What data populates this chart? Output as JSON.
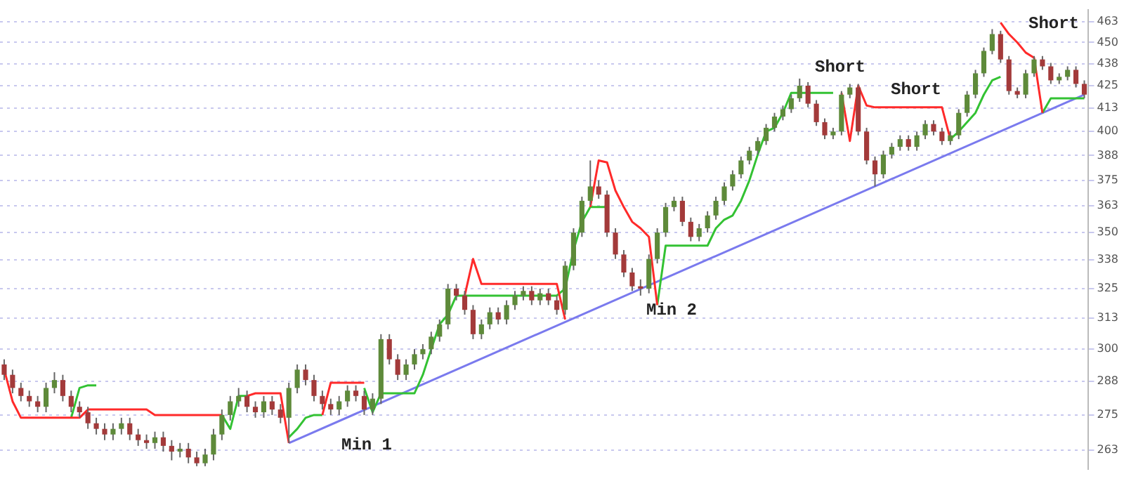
{
  "chart_data": {
    "type": "candlestick",
    "log": "y",
    "legend": false,
    "grid": "y",
    "tick_labels": "y",
    "categories": [
      null,
      null,
      null,
      null,
      null,
      null,
      null,
      null,
      null,
      null,
      null,
      null,
      null,
      null,
      null,
      null,
      null,
      null,
      null,
      null,
      null,
      null,
      null,
      null,
      null,
      null,
      null,
      null,
      null,
      null,
      null,
      null,
      null,
      null,
      null,
      null,
      null,
      null,
      null,
      null,
      null,
      null,
      null,
      null,
      null,
      null,
      null,
      null,
      null,
      null,
      null,
      null,
      null,
      null,
      null,
      null,
      null,
      null,
      null,
      null,
      null,
      null,
      null,
      null,
      null,
      null,
      null,
      null,
      null,
      null,
      null,
      null,
      null,
      null,
      null,
      null,
      null,
      null,
      null,
      null,
      null,
      null,
      null,
      null,
      null,
      null,
      null,
      null,
      null,
      null,
      null,
      null,
      null,
      null,
      null,
      null,
      null,
      null,
      null,
      null,
      null,
      null,
      null,
      null,
      null,
      null,
      null,
      null,
      null,
      null,
      null,
      null,
      null,
      null,
      null,
      null,
      null,
      null,
      null,
      null,
      null,
      null,
      null,
      null,
      null,
      null,
      null,
      null,
      null,
      null
    ],
    "ohlc": [
      [
        294,
        296,
        288,
        290
      ],
      [
        290,
        292,
        283,
        285
      ],
      [
        285,
        287,
        280,
        282
      ],
      [
        282,
        284,
        278,
        280
      ],
      [
        280,
        282,
        276,
        278
      ],
      [
        278,
        287,
        276,
        285
      ],
      [
        285,
        291,
        283,
        288
      ],
      [
        288,
        290,
        280,
        282
      ],
      [
        282,
        284,
        276,
        278
      ],
      [
        278,
        280,
        274,
        276
      ],
      [
        276,
        278,
        270,
        272
      ],
      [
        272,
        274,
        268,
        270
      ],
      [
        270,
        272,
        266,
        268
      ],
      [
        268,
        272,
        266,
        270
      ],
      [
        270,
        274,
        268,
        272
      ],
      [
        272,
        274,
        266,
        268
      ],
      [
        268,
        270,
        264,
        266
      ],
      [
        266,
        268,
        263,
        265
      ],
      [
        265,
        269,
        263,
        267
      ],
      [
        267,
        269,
        262,
        264
      ],
      [
        264,
        266,
        259,
        262
      ],
      [
        262,
        265,
        260,
        263
      ],
      [
        263,
        265,
        258,
        260
      ],
      [
        260,
        262,
        257,
        258
      ],
      [
        258,
        263,
        257,
        261
      ],
      [
        261,
        270,
        259,
        268
      ],
      [
        268,
        277,
        266,
        275
      ],
      [
        275,
        282,
        273,
        280
      ],
      [
        280,
        285,
        278,
        282
      ],
      [
        282,
        284,
        276,
        278
      ],
      [
        278,
        280,
        274,
        276
      ],
      [
        276,
        282,
        274,
        280
      ],
      [
        280,
        282,
        275,
        277
      ],
      [
        277,
        279,
        272,
        274
      ],
      [
        274,
        287,
        265,
        285
      ],
      [
        285,
        294,
        283,
        292
      ],
      [
        292,
        294,
        286,
        288
      ],
      [
        288,
        290,
        280,
        282
      ],
      [
        282,
        284,
        277,
        279
      ],
      [
        279,
        281,
        275,
        277
      ],
      [
        277,
        282,
        275,
        280
      ],
      [
        280,
        286,
        278,
        284
      ],
      [
        284,
        286,
        280,
        282
      ],
      [
        282,
        284,
        275,
        277
      ],
      [
        277,
        283,
        275,
        281
      ],
      [
        281,
        306,
        279,
        304
      ],
      [
        304,
        306,
        294,
        296
      ],
      [
        296,
        298,
        288,
        290
      ],
      [
        290,
        296,
        288,
        294
      ],
      [
        294,
        300,
        292,
        298
      ],
      [
        298,
        302,
        296,
        300
      ],
      [
        300,
        307,
        298,
        305
      ],
      [
        305,
        312,
        303,
        310
      ],
      [
        310,
        327,
        308,
        325
      ],
      [
        325,
        327,
        320,
        322
      ],
      [
        322,
        324,
        314,
        316
      ],
      [
        316,
        318,
        304,
        306
      ],
      [
        306,
        312,
        304,
        310
      ],
      [
        310,
        317,
        308,
        315
      ],
      [
        315,
        317,
        310,
        312
      ],
      [
        312,
        320,
        310,
        318
      ],
      [
        318,
        324,
        316,
        322
      ],
      [
        322,
        326,
        320,
        324
      ],
      [
        324,
        326,
        318,
        320
      ],
      [
        320,
        325,
        318,
        323
      ],
      [
        323,
        325,
        318,
        320
      ],
      [
        320,
        322,
        314,
        316
      ],
      [
        316,
        337,
        314,
        335
      ],
      [
        335,
        352,
        333,
        350
      ],
      [
        350,
        367,
        348,
        365
      ],
      [
        365,
        385,
        363,
        372
      ],
      [
        372,
        375,
        366,
        368
      ],
      [
        368,
        370,
        348,
        350
      ],
      [
        350,
        352,
        338,
        340
      ],
      [
        340,
        342,
        330,
        332
      ],
      [
        332,
        334,
        324,
        326
      ],
      [
        326,
        329,
        322,
        325
      ],
      [
        325,
        340,
        323,
        338
      ],
      [
        338,
        352,
        336,
        350
      ],
      [
        350,
        364,
        348,
        362
      ],
      [
        362,
        367,
        360,
        365
      ],
      [
        365,
        367,
        353,
        355
      ],
      [
        355,
        357,
        346,
        348
      ],
      [
        348,
        354,
        346,
        352
      ],
      [
        352,
        360,
        350,
        358
      ],
      [
        358,
        367,
        356,
        365
      ],
      [
        365,
        374,
        363,
        372
      ],
      [
        372,
        380,
        370,
        378
      ],
      [
        378,
        387,
        376,
        385
      ],
      [
        385,
        392,
        383,
        390
      ],
      [
        390,
        397,
        388,
        395
      ],
      [
        395,
        404,
        393,
        402
      ],
      [
        402,
        410,
        400,
        408
      ],
      [
        408,
        414,
        406,
        412
      ],
      [
        412,
        420,
        410,
        418
      ],
      [
        418,
        429,
        416,
        425
      ],
      [
        425,
        427,
        413,
        415
      ],
      [
        415,
        417,
        403,
        405
      ],
      [
        405,
        407,
        396,
        398
      ],
      [
        398,
        402,
        396,
        400
      ],
      [
        400,
        422,
        398,
        420
      ],
      [
        420,
        426,
        418,
        424
      ],
      [
        424,
        426,
        398,
        400
      ],
      [
        400,
        402,
        383,
        385
      ],
      [
        385,
        387,
        372,
        378
      ],
      [
        378,
        390,
        376,
        388
      ],
      [
        388,
        394,
        386,
        392
      ],
      [
        392,
        398,
        390,
        396
      ],
      [
        396,
        398,
        390,
        392
      ],
      [
        392,
        400,
        390,
        398
      ],
      [
        398,
        406,
        396,
        404
      ],
      [
        404,
        406,
        398,
        400
      ],
      [
        400,
        402,
        393,
        395
      ],
      [
        395,
        400,
        393,
        398
      ],
      [
        398,
        412,
        396,
        410
      ],
      [
        410,
        422,
        408,
        420
      ],
      [
        420,
        434,
        418,
        432
      ],
      [
        432,
        447,
        430,
        445
      ],
      [
        445,
        458,
        443,
        455
      ],
      [
        455,
        457,
        438,
        440
      ],
      [
        440,
        442,
        420,
        422
      ],
      [
        422,
        424,
        418,
        420
      ],
      [
        420,
        434,
        418,
        432
      ],
      [
        432,
        442,
        430,
        440
      ],
      [
        440,
        442,
        434,
        436
      ],
      [
        436,
        438,
        426,
        428
      ],
      [
        428,
        432,
        426,
        430
      ],
      [
        430,
        436,
        428,
        434
      ],
      [
        434,
        436,
        424,
        426
      ],
      [
        426,
        428,
        418,
        420
      ]
    ],
    "colors": [
      "#a33a3a",
      "#a33a3a",
      "#a33a3a",
      "#a33a3a",
      "#a33a3a",
      "#5e8a3a",
      "#5e8a3a",
      "#a33a3a",
      "#a33a3a",
      "#a33a3a",
      "#a33a3a",
      "#a33a3a",
      "#a33a3a",
      "#5e8a3a",
      "#5e8a3a",
      "#a33a3a",
      "#a33a3a",
      "#a33a3a",
      "#5e8a3a",
      "#a33a3a",
      "#a33a3a",
      "#5e8a3a",
      "#a33a3a",
      "#a33a3a",
      "#5e8a3a",
      "#5e8a3a",
      "#5e8a3a",
      "#5e8a3a",
      "#5e8a3a",
      "#a33a3a",
      "#a33a3a",
      "#5e8a3a",
      "#a33a3a",
      "#a33a3a",
      "#5e8a3a",
      "#5e8a3a",
      "#a33a3a",
      "#a33a3a",
      "#a33a3a",
      "#a33a3a",
      "#5e8a3a",
      "#5e8a3a",
      "#a33a3a",
      "#a33a3a",
      "#5e8a3a",
      "#5e8a3a",
      "#a33a3a",
      "#a33a3a",
      "#5e8a3a",
      "#5e8a3a",
      "#5e8a3a",
      "#5e8a3a",
      "#5e8a3a",
      "#5e8a3a",
      "#a33a3a",
      "#a33a3a",
      "#a33a3a",
      "#5e8a3a",
      "#5e8a3a",
      "#a33a3a",
      "#5e8a3a",
      "#5e8a3a",
      "#5e8a3a",
      "#a33a3a",
      "#5e8a3a",
      "#a33a3a",
      "#a33a3a",
      "#5e8a3a",
      "#5e8a3a",
      "#5e8a3a",
      "#5e8a3a",
      "#a33a3a",
      "#a33a3a",
      "#a33a3a",
      "#a33a3a",
      "#a33a3a",
      "#a33a3a",
      "#5e8a3a",
      "#5e8a3a",
      "#5e8a3a",
      "#5e8a3a",
      "#a33a3a",
      "#a33a3a",
      "#5e8a3a",
      "#5e8a3a",
      "#5e8a3a",
      "#5e8a3a",
      "#5e8a3a",
      "#5e8a3a",
      "#5e8a3a",
      "#5e8a3a",
      "#5e8a3a",
      "#5e8a3a",
      "#5e8a3a",
      "#5e8a3a",
      "#5e8a3a",
      "#a33a3a",
      "#a33a3a",
      "#a33a3a",
      "#5e8a3a",
      "#5e8a3a",
      "#5e8a3a",
      "#a33a3a",
      "#a33a3a",
      "#a33a3a",
      "#5e8a3a",
      "#5e8a3a",
      "#5e8a3a",
      "#a33a3a",
      "#5e8a3a",
      "#5e8a3a",
      "#a33a3a",
      "#a33a3a",
      "#5e8a3a",
      "#5e8a3a",
      "#5e8a3a",
      "#5e8a3a",
      "#5e8a3a",
      "#5e8a3a",
      "#a33a3a",
      "#a33a3a",
      "#a33a3a",
      "#5e8a3a",
      "#5e8a3a",
      "#a33a3a",
      "#a33a3a",
      "#5e8a3a",
      "#5e8a3a",
      "#a33a3a",
      "#a33a3a"
    ],
    "series": [
      {
        "type": "line",
        "color": "#ff2a2a",
        "values": [
          292,
          280,
          274,
          274,
          274,
          274,
          274,
          274,
          274,
          274,
          277,
          277,
          277,
          277,
          277,
          277,
          277,
          277,
          275,
          275,
          275,
          275,
          275,
          275,
          275,
          275,
          275,
          null,
          null,
          282,
          283,
          283,
          283,
          283,
          265,
          null,
          null,
          null,
          275,
          287,
          287,
          287,
          287,
          287,
          null,
          null,
          null,
          null,
          null,
          null,
          null,
          null,
          null,
          null,
          null,
          322,
          338,
          327,
          327,
          327,
          327,
          327,
          327,
          327,
          327,
          327,
          327,
          312,
          null,
          null,
          362,
          385,
          384,
          370,
          362,
          355,
          352,
          348,
          318,
          null,
          null,
          null,
          null,
          null,
          null,
          null,
          null,
          null,
          null,
          null,
          null,
          null,
          null,
          null,
          null,
          null,
          null,
          null,
          null,
          null,
          421,
          395,
          425,
          414,
          413,
          413,
          413,
          413,
          413,
          413,
          413,
          413,
          413,
          396,
          null,
          null,
          null,
          null,
          null,
          462,
          455,
          450,
          444,
          441,
          410,
          null,
          null,
          null,
          null,
          null
        ]
      },
      {
        "type": "line",
        "color": "#33c233",
        "values": [
          null,
          null,
          null,
          null,
          null,
          null,
          null,
          null,
          274,
          285,
          286,
          286,
          null,
          null,
          null,
          null,
          null,
          null,
          null,
          null,
          null,
          null,
          null,
          null,
          null,
          null,
          275,
          270,
          282,
          282,
          null,
          null,
          null,
          null,
          267,
          270,
          274,
          275,
          275,
          null,
          null,
          null,
          null,
          285,
          276,
          283,
          283,
          283,
          283,
          283,
          290,
          300,
          310,
          314,
          322,
          322,
          322,
          322,
          322,
          322,
          322,
          322,
          322,
          322,
          322,
          322,
          322,
          325,
          342,
          355,
          362,
          362,
          362,
          null,
          null,
          null,
          null,
          null,
          318,
          344,
          344,
          344,
          344,
          344,
          344,
          352,
          356,
          358,
          365,
          375,
          388,
          400,
          402,
          410,
          421,
          421,
          421,
          421,
          421,
          421,
          null,
          null,
          null,
          null,
          null,
          null,
          null,
          null,
          null,
          null,
          null,
          null,
          null,
          396,
          400,
          405,
          410,
          420,
          428,
          430,
          null,
          null,
          null,
          null,
          410,
          418,
          418,
          418,
          418,
          418
        ]
      },
      {
        "type": "line",
        "color": "#7a7aee",
        "values": [
          null,
          null,
          null,
          null,
          null,
          null,
          null,
          null,
          null,
          null,
          null,
          null,
          null,
          null,
          null,
          null,
          null,
          null,
          null,
          null,
          null,
          null,
          null,
          null,
          null,
          null,
          null,
          null,
          null,
          null,
          null,
          null,
          null,
          null,
          265,
          null,
          null,
          null,
          null,
          null,
          null,
          null,
          null,
          null,
          null,
          null,
          null,
          null,
          null,
          null,
          null,
          null,
          null,
          null,
          null,
          null,
          null,
          null,
          null,
          null,
          null,
          null,
          null,
          null,
          null,
          null,
          null,
          null,
          null,
          null,
          null,
          null,
          null,
          null,
          null,
          null,
          null,
          null,
          null,
          null,
          null,
          null,
          null,
          null,
          null,
          null,
          null,
          null,
          null,
          null,
          null,
          null,
          null,
          null,
          null,
          null,
          null,
          null,
          null,
          null,
          null,
          null,
          null,
          null,
          null,
          null,
          null,
          null,
          null,
          null,
          null,
          null,
          null,
          null,
          null,
          null,
          null,
          null,
          null,
          null,
          null,
          null,
          null,
          null,
          null,
          null,
          null,
          null,
          null,
          420
        ]
      }
    ],
    "ylim": [
      256,
      470
    ],
    "yticks": [
      {
        "value": 262.5,
        "label": "263"
      },
      275,
      {
        "value": 287.5,
        "label": "288"
      },
      300,
      {
        "value": 312.5,
        "label": "313"
      },
      325,
      {
        "value": 337.5,
        "label": "338"
      },
      350,
      {
        "value": 362.5,
        "label": "363"
      },
      375,
      {
        "value": 387.5,
        "label": "388"
      },
      400,
      {
        "value": 412.5,
        "label": "413"
      },
      425,
      {
        "value": 437.5,
        "label": "438"
      },
      450,
      {
        "value": 462.5,
        "label": "463"
      }
    ],
    "annotations": [
      "Min 1",
      "Min 2",
      "Short",
      "Short",
      "Short"
    ]
  }
}
